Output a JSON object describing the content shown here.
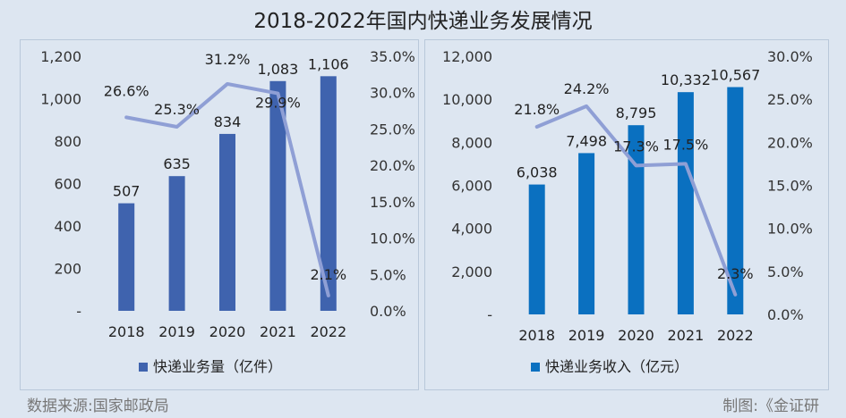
{
  "title": "2018-2022年国内快递业务发展情况",
  "source": "数据来源:国家邮政局",
  "credit": "制图:《金证研",
  "chart_data": [
    {
      "type": "bar",
      "categories": [
        "2018",
        "2019",
        "2020",
        "2021",
        "2022"
      ],
      "series": [
        {
          "name": "快递业务量（亿件）",
          "type": "bar",
          "axis": "left",
          "values": [
            507,
            635,
            834,
            1083,
            1106
          ],
          "labels": [
            "507",
            "635",
            "834",
            "1,083",
            "1,106"
          ]
        },
        {
          "name": "",
          "type": "line",
          "axis": "right",
          "values": [
            26.6,
            25.3,
            31.2,
            29.9,
            2.1
          ],
          "labels": [
            "26.6%",
            "25.3%",
            "31.2%",
            "29.9%",
            "2.1%"
          ]
        }
      ],
      "left_axis": {
        "ylim": [
          0,
          1200
        ],
        "ticks": [
          "-",
          "200",
          "400",
          "600",
          "800",
          "1,000",
          "1,200"
        ]
      },
      "right_axis": {
        "ylim": [
          0,
          35
        ],
        "ticks": [
          "0.0%",
          "5.0%",
          "10.0%",
          "15.0%",
          "20.0%",
          "25.0%",
          "30.0%",
          "35.0%"
        ]
      },
      "legend_position": "bottom",
      "colors": {
        "bar": "#3f63ae",
        "line": "#8f9fd5"
      }
    },
    {
      "type": "bar",
      "categories": [
        "2018",
        "2019",
        "2020",
        "2021",
        "2022"
      ],
      "series": [
        {
          "name": "快递业务收入（亿元）",
          "type": "bar",
          "axis": "left",
          "values": [
            6038,
            7498,
            8795,
            10332,
            10567
          ],
          "labels": [
            "6,038",
            "7,498",
            "8,795",
            "10,332",
            "10,567"
          ]
        },
        {
          "name": "",
          "type": "line",
          "axis": "right",
          "values": [
            21.8,
            24.2,
            17.3,
            17.5,
            2.3
          ],
          "labels": [
            "21.8%",
            "24.2%",
            "17.3%",
            "17.5%",
            "2.3%"
          ]
        }
      ],
      "left_axis": {
        "ylim": [
          0,
          12000
        ],
        "ticks": [
          "-",
          "2,000",
          "4,000",
          "6,000",
          "8,000",
          "10,000",
          "12,000"
        ]
      },
      "right_axis": {
        "ylim": [
          0,
          30
        ],
        "ticks": [
          "0.0%",
          "5.0%",
          "10.0%",
          "15.0%",
          "20.0%",
          "25.0%",
          "30.0%"
        ]
      },
      "legend_position": "bottom",
      "colors": {
        "bar": "#0a70c0",
        "line": "#8f9fd5"
      }
    }
  ]
}
